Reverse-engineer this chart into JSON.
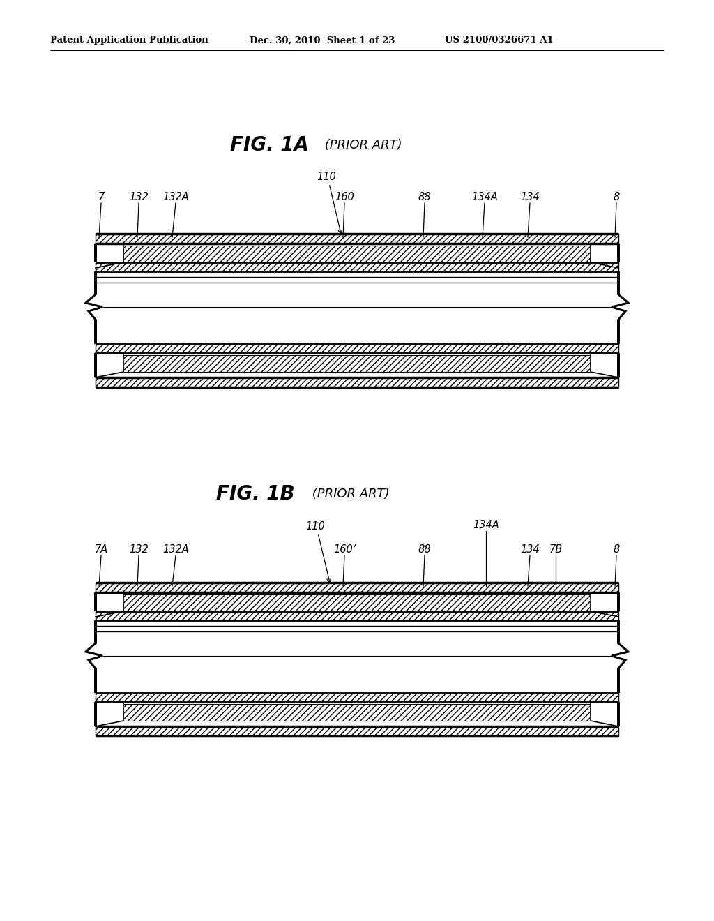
{
  "bg_color": "#ffffff",
  "header_left": "Patent Application Publication",
  "header_mid": "Dec. 30, 2010  Sheet 1 of 23",
  "header_right": "US 2100/0326671 A1",
  "fig1a_title": "FIG. 1A",
  "fig1a_subtitle": "(PRIOR ART)",
  "fig1b_title": "FIG. 1B",
  "fig1b_subtitle": "(PRIOR ART)",
  "line_color": "#000000"
}
